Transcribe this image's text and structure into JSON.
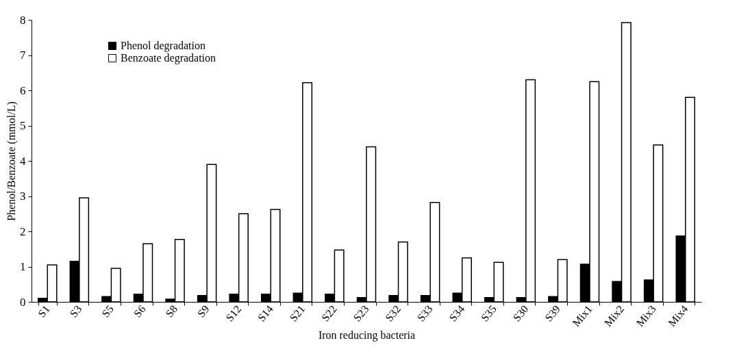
{
  "chart_data": {
    "type": "bar",
    "xlabel": "Iron reducing bacteria",
    "ylabel": "Phenol/Benzoate (mmol/L)",
    "categories": [
      "S1",
      "S3",
      "S5",
      "S6",
      "S8",
      "S9",
      "S12",
      "S14",
      "S21",
      "S22",
      "S23",
      "S32",
      "S33",
      "S34",
      "S35",
      "S30",
      "S39",
      "Mix1",
      "Mix2",
      "Mix3",
      "Mix4"
    ],
    "series": [
      {
        "name": "Phenol degradation",
        "color": "#000000",
        "values": [
          0.1,
          1.15,
          0.15,
          0.22,
          0.08,
          0.18,
          0.22,
          0.22,
          0.25,
          0.22,
          0.12,
          0.18,
          0.18,
          0.25,
          0.12,
          0.12,
          0.15,
          1.07,
          0.58,
          0.62,
          1.87
        ]
      },
      {
        "name": "Benzoate degradation",
        "color": "#ffffff",
        "values": [
          1.05,
          2.95,
          0.95,
          1.65,
          1.77,
          3.9,
          2.5,
          2.62,
          6.22,
          1.47,
          4.4,
          1.7,
          2.82,
          1.25,
          1.12,
          6.3,
          1.2,
          6.25,
          7.92,
          4.45,
          5.8
        ]
      }
    ],
    "ylim": [
      0,
      8
    ],
    "yticks": [
      0,
      1,
      2,
      3,
      4,
      5,
      6,
      7,
      8
    ],
    "grid": false,
    "legend": "top left"
  }
}
